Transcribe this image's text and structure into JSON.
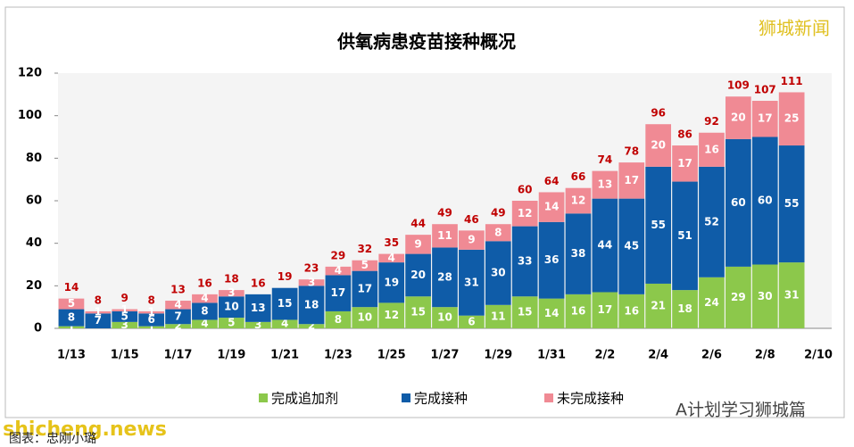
{
  "chart_data": {
    "type": "stacked-bar",
    "title": "供氧病患疫苗接种概况",
    "categories": [
      "1/13",
      null,
      "1/15",
      null,
      "1/17",
      null,
      "1/19",
      null,
      "1/21",
      null,
      "1/23",
      null,
      "1/25",
      null,
      "1/27",
      null,
      "1/29",
      null,
      "1/31",
      null,
      "2/2",
      null,
      "2/4",
      null,
      "2/6",
      null,
      "2/8",
      null,
      "2/10"
    ],
    "series": [
      {
        "name": "完成追加剂",
        "color": "#8cc84b",
        "values": [
          1,
          0,
          3,
          1,
          2,
          4,
          5,
          3,
          4,
          2,
          8,
          10,
          12,
          15,
          10,
          6,
          11,
          15,
          14,
          16,
          17,
          16,
          21,
          18,
          24,
          29,
          30,
          31,
          null
        ]
      },
      {
        "name": "完成接种",
        "color": "#0f5ca8",
        "values": [
          8,
          7,
          5,
          6,
          7,
          8,
          10,
          13,
          15,
          18,
          17,
          17,
          19,
          20,
          28,
          31,
          30,
          33,
          36,
          38,
          44,
          45,
          55,
          51,
          52,
          60,
          60,
          55,
          null
        ]
      },
      {
        "name": "未完成接种",
        "color": "#f08a94",
        "values": [
          5,
          1,
          1,
          1,
          4,
          4,
          3,
          0,
          0,
          3,
          4,
          5,
          4,
          9,
          11,
          9,
          8,
          12,
          14,
          12,
          13,
          17,
          20,
          17,
          16,
          20,
          17,
          25,
          null
        ]
      }
    ],
    "totals": [
      14,
      8,
      9,
      8,
      13,
      16,
      18,
      16,
      19,
      23,
      29,
      32,
      35,
      44,
      49,
      46,
      49,
      60,
      64,
      66,
      74,
      78,
      96,
      86,
      92,
      109,
      107,
      111,
      null
    ],
    "ylim": [
      0,
      120
    ],
    "yticks": [
      0,
      20,
      40,
      60,
      80,
      100,
      120
    ],
    "grid": false,
    "watermarks": [
      "狮城新闻",
      "shicheng.news",
      "A计划学习狮城篇",
      "图表：忠刚小璐"
    ]
  }
}
